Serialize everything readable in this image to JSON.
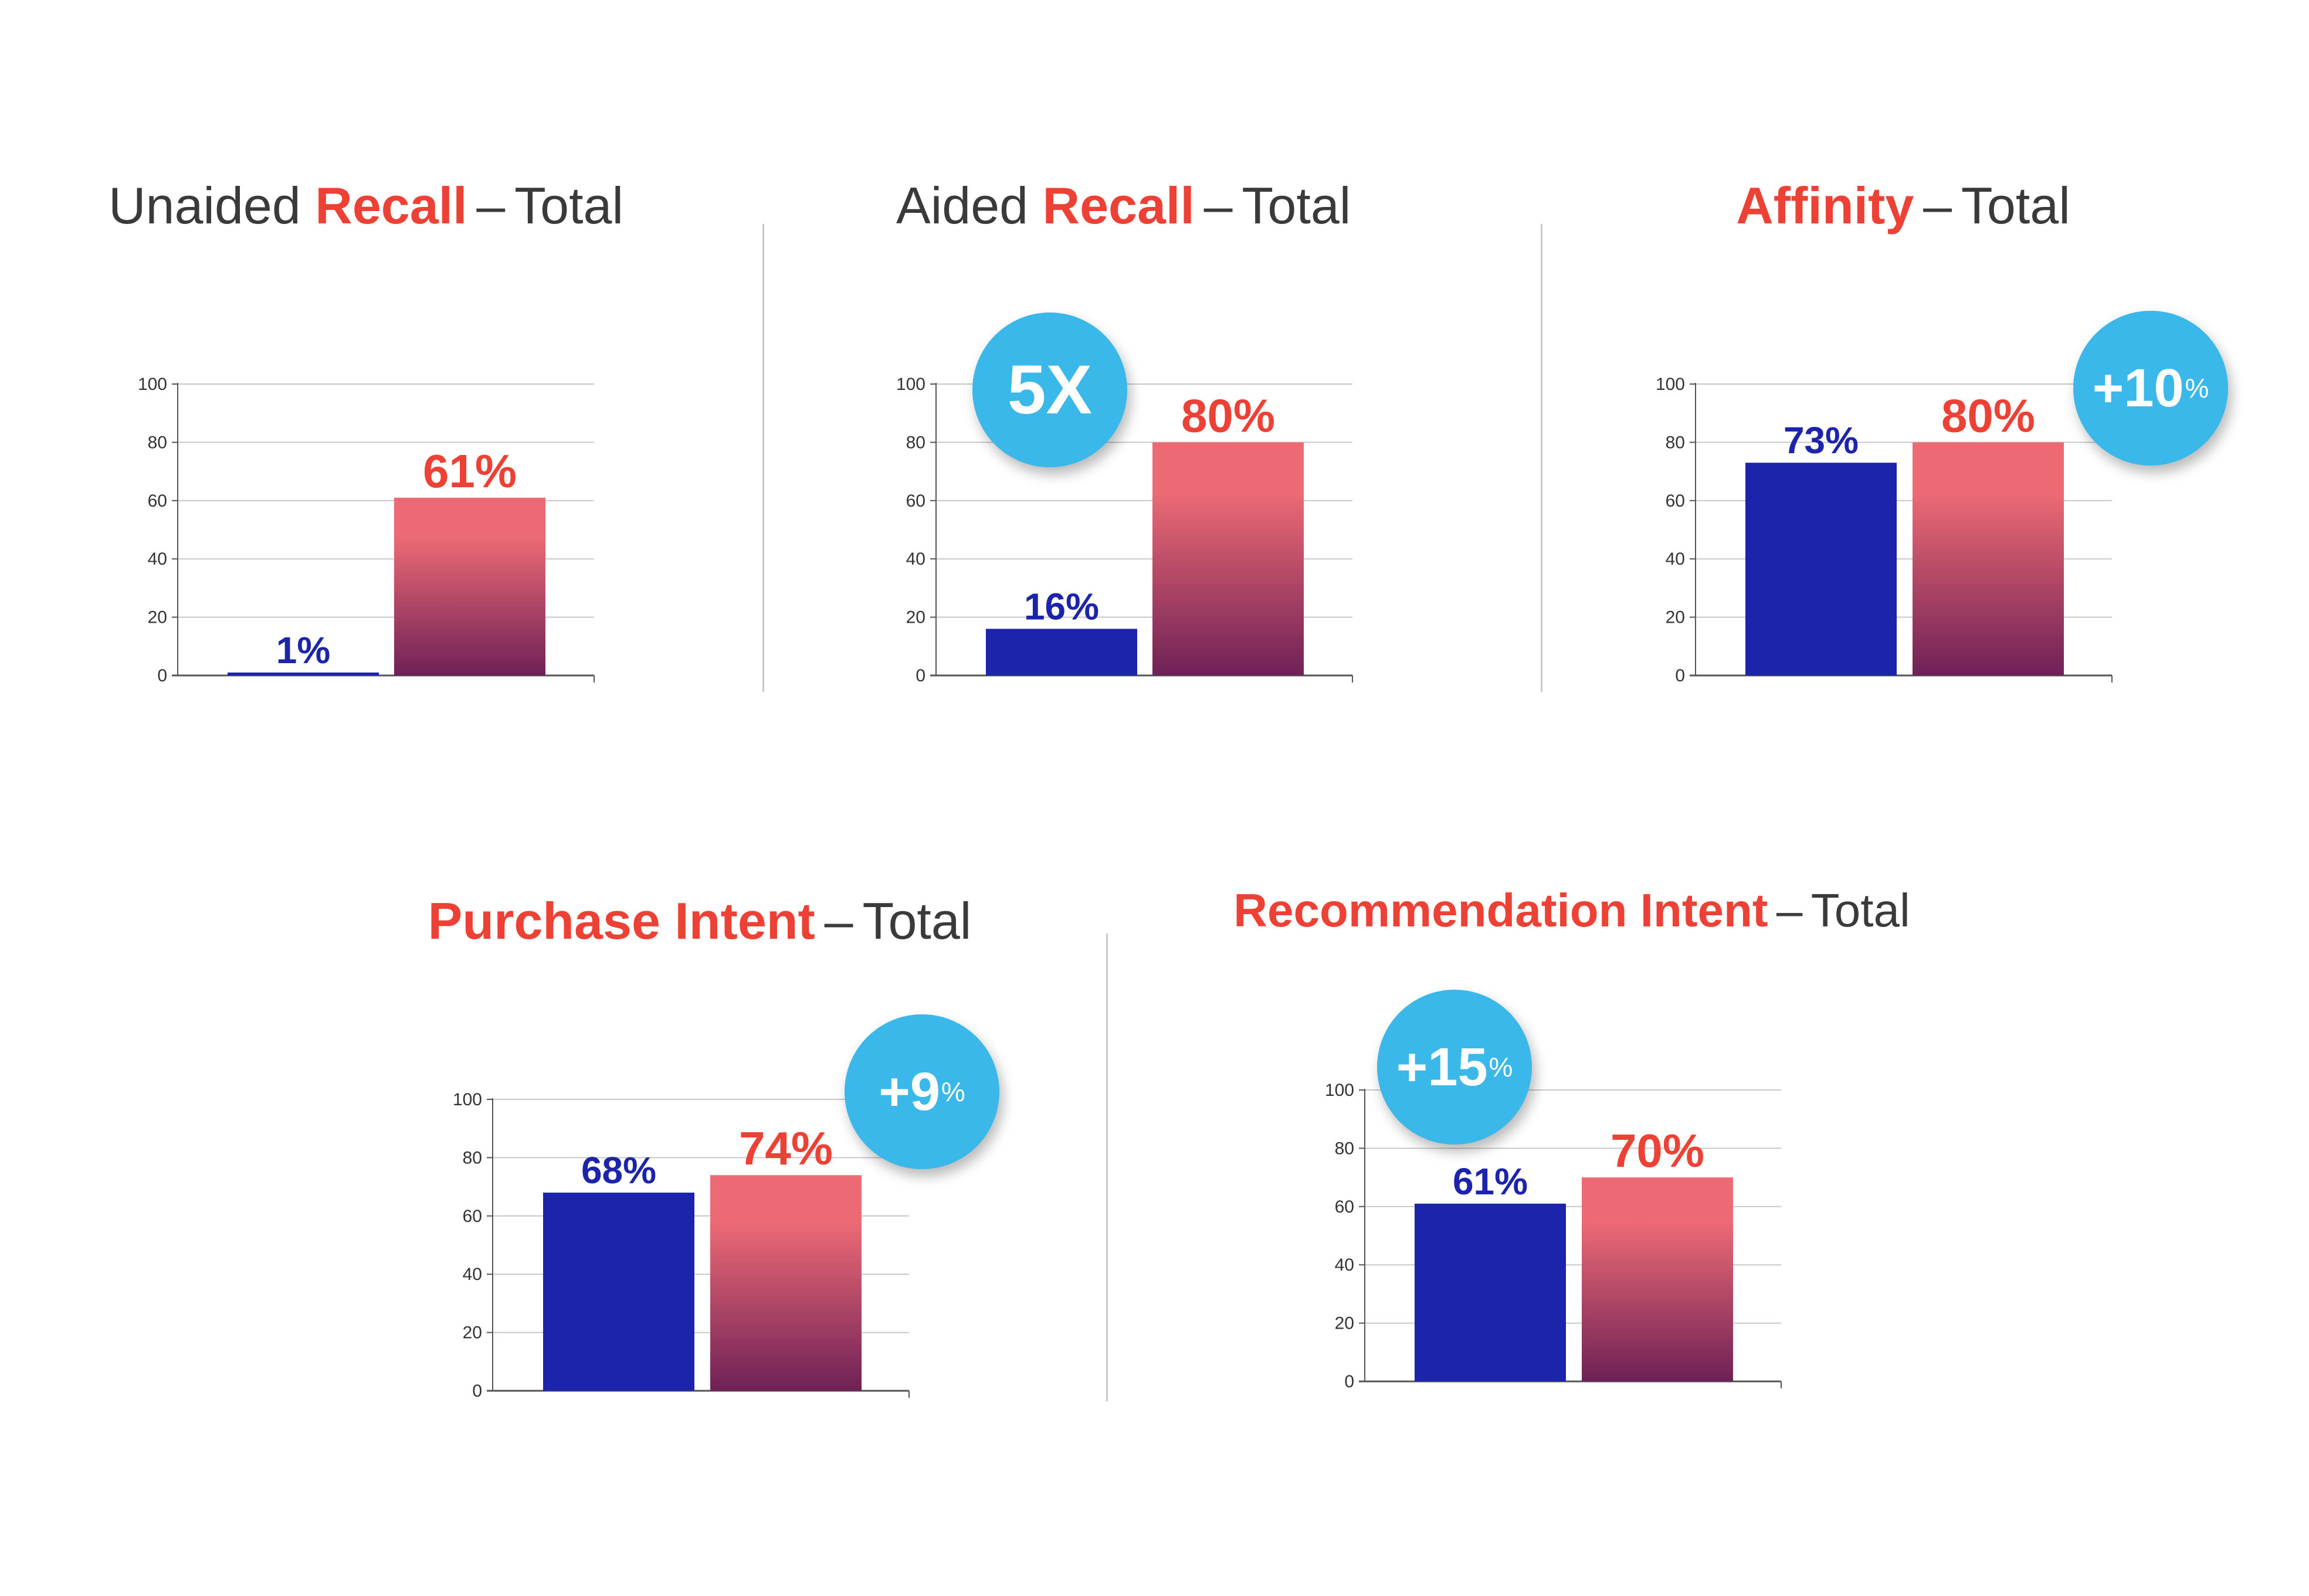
{
  "colors": {
    "highlight": "#ee4136",
    "title_text": "#3a3a3a",
    "bar_blue": "#1b24ab",
    "bar_red_top": "#ec6a74",
    "bar_red_bottom": "#6e2156",
    "badge": "#3bb8ea"
  },
  "chart_data": [
    {
      "type": "bar",
      "title": {
        "prefix": "Unaided ",
        "highlight": "Recall",
        "suffix": "Total"
      },
      "categories": [
        "",
        ""
      ],
      "values": [
        1,
        61
      ],
      "value_labels": [
        "1%",
        "61%"
      ],
      "ylim": [
        0,
        100
      ],
      "yticks": [
        "0",
        "20",
        "40",
        "60",
        "80",
        "100"
      ],
      "grid": true,
      "badge": null
    },
    {
      "type": "bar",
      "title": {
        "prefix": "Aided ",
        "highlight": "Recall",
        "suffix": "Total"
      },
      "categories": [
        "",
        ""
      ],
      "values": [
        16,
        80
      ],
      "value_labels": [
        "16%",
        "80%"
      ],
      "ylim": [
        0,
        100
      ],
      "yticks": [
        "0",
        "20",
        "40",
        "60",
        "80",
        "100"
      ],
      "grid": true,
      "badge": {
        "text": "5X",
        "sup": ""
      }
    },
    {
      "type": "bar",
      "title": {
        "prefix": "",
        "highlight": "Affinity",
        "suffix": "Total"
      },
      "categories": [
        "",
        ""
      ],
      "values": [
        73,
        80
      ],
      "value_labels": [
        "73%",
        "80%"
      ],
      "ylim": [
        0,
        100
      ],
      "yticks": [
        "0",
        "20",
        "40",
        "60",
        "80",
        "100"
      ],
      "grid": true,
      "badge": {
        "text": "+10",
        "sup": "%"
      }
    },
    {
      "type": "bar",
      "title": {
        "prefix": "",
        "highlight": "Purchase Intent",
        "suffix": "Total"
      },
      "categories": [
        "",
        ""
      ],
      "values": [
        68,
        74
      ],
      "value_labels": [
        "68%",
        "74%"
      ],
      "ylim": [
        0,
        100
      ],
      "yticks": [
        "0",
        "20",
        "40",
        "60",
        "80",
        "100"
      ],
      "grid": true,
      "badge": {
        "text": "+9",
        "sup": "%"
      }
    },
    {
      "type": "bar",
      "title": {
        "prefix": "",
        "highlight": "Recommendation Intent",
        "suffix": "Total"
      },
      "categories": [
        "",
        ""
      ],
      "values": [
        61,
        70
      ],
      "value_labels": [
        "61%",
        "70%"
      ],
      "ylim": [
        0,
        100
      ],
      "yticks": [
        "0",
        "20",
        "40",
        "60",
        "80",
        "100"
      ],
      "grid": true,
      "badge": {
        "text": "+15",
        "sup": "%"
      }
    }
  ]
}
